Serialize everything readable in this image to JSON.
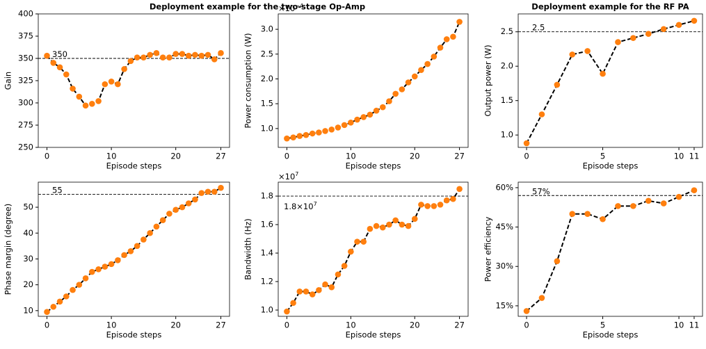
{
  "title": "Deployment example for the two-stage Op-Amp",
  "chart_data": [
    {
      "type": "line",
      "xlabel": "Episode steps",
      "ylabel": "Gain",
      "x": [
        0,
        1,
        2,
        3,
        4,
        5,
        6,
        7,
        8,
        9,
        10,
        11,
        12,
        13,
        14,
        15,
        16,
        17,
        18,
        19,
        20,
        21,
        22,
        23,
        24,
        25,
        26,
        27
      ],
      "series": [
        {
          "color": "#ff7f0e",
          "line_color": "#000000",
          "values": [
            353,
            345,
            340,
            332,
            316,
            307,
            297,
            299,
            302,
            321,
            324,
            321,
            338,
            347,
            351,
            351,
            354,
            356,
            351,
            351,
            355,
            355,
            353,
            354,
            353,
            354,
            349,
            356
          ]
        }
      ],
      "xlim": [
        -1.35,
        28.35
      ],
      "xticks": [
        0,
        10,
        20,
        27
      ],
      "ylim": [
        250,
        400
      ],
      "yticks": [
        250,
        275,
        300,
        325,
        350,
        375,
        400
      ],
      "hline": {
        "value": 350,
        "label": "350"
      }
    },
    {
      "type": "line",
      "xlabel": "Episode steps",
      "ylabel": "Power consumption (W)",
      "offset_text": {
        "base": "×10",
        "exponent": "−4"
      },
      "x": [
        0,
        1,
        2,
        3,
        4,
        5,
        6,
        7,
        8,
        9,
        10,
        11,
        12,
        13,
        14,
        15,
        16,
        17,
        18,
        19,
        20,
        21,
        22,
        23,
        24,
        25,
        26,
        27
      ],
      "series": [
        {
          "color": "#ff7f0e",
          "line_color": "#000000",
          "values": [
            0.8,
            0.82,
            0.85,
            0.87,
            0.9,
            0.92,
            0.95,
            0.98,
            1.02,
            1.07,
            1.12,
            1.18,
            1.23,
            1.28,
            1.36,
            1.43,
            1.55,
            1.7,
            1.79,
            1.93,
            2.05,
            2.18,
            2.3,
            2.45,
            2.63,
            2.8,
            2.85,
            3.15
          ]
        }
      ],
      "xlim": [
        -1.35,
        28.35
      ],
      "xticks": [
        0,
        10,
        20,
        27
      ],
      "ylim": [
        0.62,
        3.31
      ],
      "yticks": [
        {
          "value": 1.0,
          "label": "1.0"
        },
        1.5,
        {
          "value": 2.0,
          "label": "2.0"
        },
        2.5,
        {
          "value": 3.0,
          "label": "3.0"
        }
      ]
    },
    {
      "type": "line",
      "title": "Deployment example for the RF PA",
      "xlabel": "Episode steps",
      "ylabel": "Output power  (W)",
      "x": [
        0,
        1,
        2,
        3,
        4,
        5,
        6,
        7,
        8,
        9,
        10,
        11
      ],
      "series": [
        {
          "color": "#ff7f0e",
          "line_color": "#000000",
          "values": [
            0.88,
            1.3,
            1.73,
            2.17,
            2.22,
            1.89,
            2.35,
            2.41,
            2.47,
            2.54,
            2.6,
            2.66
          ]
        }
      ],
      "xlim": [
        -0.55,
        11.55
      ],
      "xticks": [
        0,
        5,
        10,
        11
      ],
      "ylim": [
        0.82,
        2.76
      ],
      "yticks": [
        {
          "value": 1.0,
          "label": "1.0"
        },
        1.5,
        {
          "value": 2.0,
          "label": "2.0"
        },
        2.5
      ],
      "hline": {
        "value": 2.5,
        "label": "2.5"
      }
    },
    {
      "type": "line",
      "xlabel": "Episode steps",
      "ylabel": "Phase margin (degree)",
      "x": [
        0,
        1,
        2,
        3,
        4,
        5,
        6,
        7,
        8,
        9,
        10,
        11,
        12,
        13,
        14,
        15,
        16,
        17,
        18,
        19,
        20,
        21,
        22,
        23,
        24,
        25,
        26,
        27
      ],
      "series": [
        {
          "color": "#ff7f0e",
          "line_color": "#000000",
          "values": [
            9.5,
            11.5,
            13.5,
            15.5,
            18,
            20,
            22.5,
            25,
            26,
            27,
            28,
            29.5,
            31.5,
            33,
            35,
            37.5,
            40,
            42.5,
            45,
            47.5,
            49,
            50,
            51.5,
            53,
            55.5,
            56,
            56,
            57.5
          ]
        }
      ],
      "xlim": [
        -1.35,
        28.35
      ],
      "xticks": [
        0,
        10,
        20,
        27
      ],
      "ylim": [
        7.8,
        59.7
      ],
      "yticks": [
        10,
        20,
        30,
        40,
        50
      ],
      "hline": {
        "value": 55,
        "label": "55"
      }
    },
    {
      "type": "line",
      "xlabel": "Episode steps",
      "ylabel": "Bandwidth (Hz)",
      "offset_text": {
        "base": "×10",
        "exponent": "7"
      },
      "x": [
        0,
        1,
        2,
        3,
        4,
        5,
        6,
        7,
        8,
        9,
        10,
        11,
        12,
        13,
        14,
        15,
        16,
        17,
        18,
        19,
        20,
        21,
        22,
        23,
        24,
        25,
        26,
        27
      ],
      "series": [
        {
          "color": "#ff7f0e",
          "line_color": "#000000",
          "values": [
            0.99,
            1.05,
            1.13,
            1.13,
            1.11,
            1.14,
            1.18,
            1.16,
            1.25,
            1.31,
            1.41,
            1.48,
            1.48,
            1.57,
            1.59,
            1.58,
            1.6,
            1.63,
            1.6,
            1.59,
            1.64,
            1.74,
            1.73,
            1.73,
            1.74,
            1.77,
            1.78,
            1.85
          ]
        }
      ],
      "xlim": [
        -1.35,
        28.35
      ],
      "xticks": [
        0,
        10,
        20,
        27
      ],
      "ylim": [
        0.956,
        1.898
      ],
      "yticks": [
        {
          "value": 1.0,
          "label": "1.0"
        },
        1.2,
        1.4,
        1.6,
        1.8
      ],
      "hline": {
        "value": 1.8,
        "label": "1.8×10",
        "label_exponent": "7",
        "label_position": "below"
      }
    },
    {
      "type": "line",
      "xlabel": "Episode steps",
      "ylabel": "Power efficiency",
      "x": [
        0,
        1,
        2,
        3,
        4,
        5,
        6,
        7,
        8,
        9,
        10,
        11
      ],
      "series": [
        {
          "color": "#ff7f0e",
          "line_color": "#000000",
          "values": [
            13,
            18,
            32,
            50,
            50,
            48,
            53,
            53,
            55,
            54,
            56.5,
            59
          ]
        }
      ],
      "xlim": [
        -0.55,
        11.55
      ],
      "xticks": [
        0,
        5,
        10,
        11
      ],
      "ylim": [
        11.0,
        62.1
      ],
      "yticks": [
        {
          "value": 15,
          "label": "15%"
        },
        {
          "value": 30,
          "label": "30%"
        },
        {
          "value": 45,
          "label": "45%"
        },
        {
          "value": 60,
          "label": "60%"
        }
      ],
      "hline": {
        "value": 57,
        "label": "57%"
      }
    }
  ]
}
